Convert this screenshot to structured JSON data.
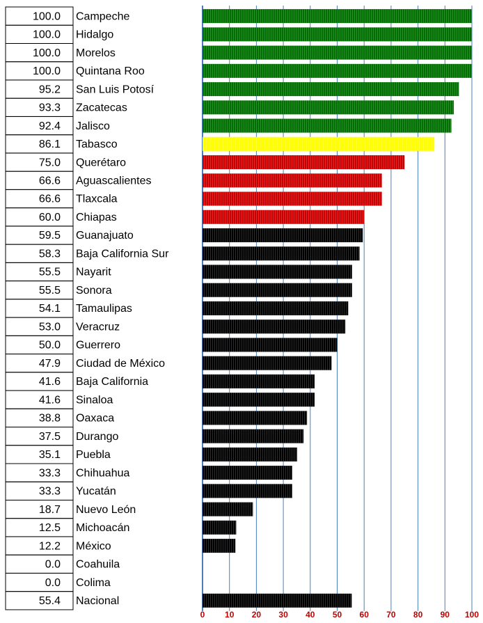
{
  "chart_data": {
    "type": "bar",
    "orientation": "horizontal",
    "categories": [
      "Campeche",
      "Hidalgo",
      "Morelos",
      "Quintana Roo",
      "San Luis Potosí",
      "Zacatecas",
      "Jalisco",
      "Tabasco",
      "Querétaro",
      "Aguascalientes",
      "Tlaxcala",
      "Chiapas",
      "Guanajuato",
      "Baja California Sur",
      "Nayarit",
      "Sonora",
      "Tamaulipas",
      "Veracruz",
      "Guerrero",
      "Ciudad de México",
      "Baja California",
      "Sinaloa",
      "Oaxaca",
      "Durango",
      "Puebla",
      "Chihuahua",
      "Yucatán",
      "Nuevo León",
      "Michoacán",
      "México",
      "Coahuila",
      "Colima",
      "Nacional"
    ],
    "values": [
      100,
      100,
      100,
      100,
      95.2,
      93.3,
      92.4,
      86.1,
      75,
      66.6,
      66.6,
      60,
      59.5,
      58.3,
      55.5,
      55.5,
      54.1,
      53,
      50,
      47.9,
      41.6,
      41.6,
      38.8,
      37.5,
      35.1,
      33.3,
      33.3,
      18.7,
      12.5,
      12.2,
      0,
      0,
      55.4
    ],
    "value_labels": [
      "100.0",
      "100.0",
      "100.0",
      "100.0",
      "95.2",
      "93.3",
      "92.4",
      "86.1",
      "75.0",
      "66.6",
      "66.6",
      "60.0",
      "59.5",
      "58.3",
      "55.5",
      "55.5",
      "54.1",
      "53.0",
      "50.0",
      "47.9",
      "41.6",
      "41.6",
      "38.8",
      "37.5",
      "35.1",
      "33.3",
      "33.3",
      "18.7",
      "12.5",
      "12.2",
      "0.0",
      "0.0",
      "55.4"
    ],
    "colors": [
      "#007000",
      "#007000",
      "#007000",
      "#007000",
      "#007000",
      "#007000",
      "#007000",
      "#ffff00",
      "#cc0000",
      "#cc0000",
      "#cc0000",
      "#cc0000",
      "#000000",
      "#000000",
      "#000000",
      "#000000",
      "#000000",
      "#000000",
      "#000000",
      "#000000",
      "#000000",
      "#000000",
      "#000000",
      "#000000",
      "#000000",
      "#000000",
      "#000000",
      "#000000",
      "#000000",
      "#000000",
      "#000000",
      "#000000",
      "#000000"
    ],
    "xlim": [
      0,
      100
    ],
    "xticks": [
      0,
      10,
      20,
      30,
      40,
      50,
      60,
      70,
      80,
      90,
      100
    ],
    "grid": true
  }
}
